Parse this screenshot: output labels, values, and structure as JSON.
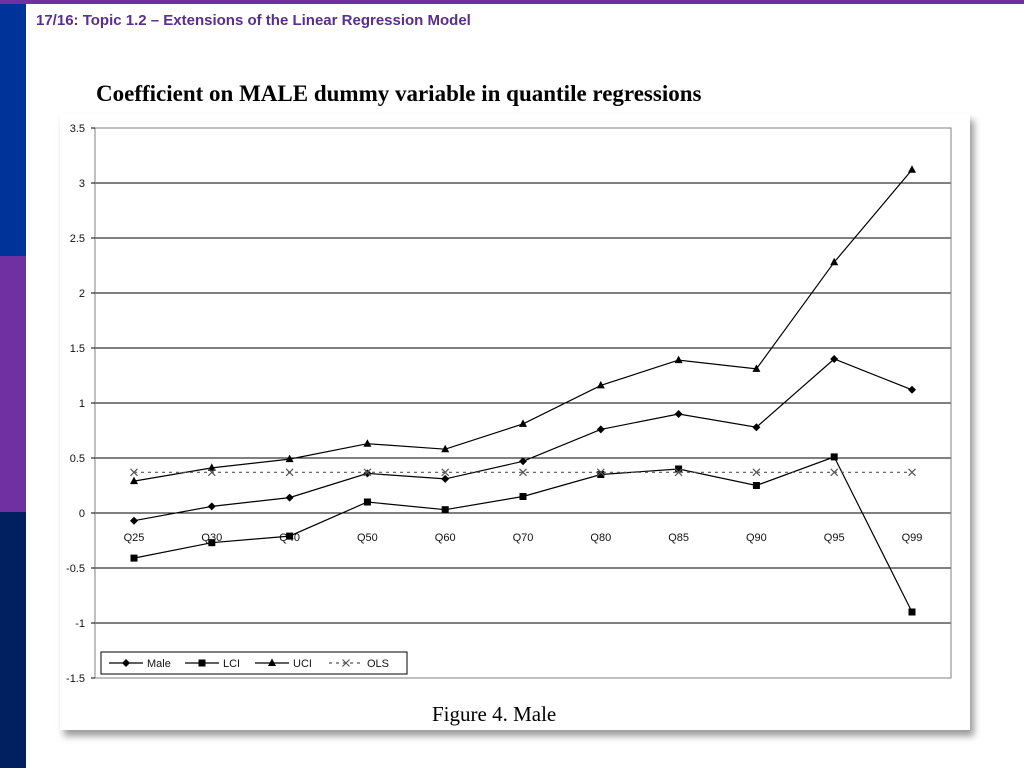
{
  "slide": {
    "header": "17/16: Topic 1.2 – Extensions of the Linear Regression Model",
    "heading": "Coefficient on MALE dummy variable in quantile regressions",
    "caption": "Figure 4.  Male"
  },
  "colors": {
    "header_text": "#5a2d91",
    "top_rule": "#7030a0",
    "band_top": "#003399",
    "band_middle": "#7030a0",
    "band_bottom": "#002060",
    "series_line": "#000000",
    "ols_line": "#555555"
  },
  "chart_data": {
    "type": "line",
    "title": "",
    "xlabel": "",
    "ylabel": "",
    "categories": [
      "Q25",
      "Q30",
      "Q40",
      "Q50",
      "Q60",
      "Q70",
      "Q80",
      "Q85",
      "Q90",
      "Q95",
      "Q99"
    ],
    "ylim": [
      -1.5,
      3.5
    ],
    "yticks": [
      "3.5",
      "3",
      "2.5",
      "2",
      "1.5",
      "1",
      "0.5",
      "0",
      "-0.5",
      "-1",
      "-1.5"
    ],
    "grid": "horizontal",
    "legend_position": "bottom-left",
    "series": [
      {
        "name": "Male",
        "marker": "diamond",
        "dash": "solid",
        "values": [
          -0.07,
          0.06,
          0.14,
          0.36,
          0.31,
          0.47,
          0.76,
          0.9,
          0.78,
          1.4,
          1.12
        ]
      },
      {
        "name": "LCI",
        "marker": "square",
        "dash": "solid",
        "values": [
          -0.41,
          -0.27,
          -0.21,
          0.1,
          0.03,
          0.15,
          0.35,
          0.4,
          0.25,
          0.51,
          -0.9
        ]
      },
      {
        "name": "UCI",
        "marker": "triangle",
        "dash": "solid",
        "values": [
          0.29,
          0.41,
          0.49,
          0.63,
          0.58,
          0.81,
          1.16,
          1.39,
          1.31,
          2.28,
          3.12
        ]
      },
      {
        "name": "OLS",
        "marker": "x",
        "dash": "dashed",
        "values": [
          0.37,
          0.37,
          0.37,
          0.37,
          0.37,
          0.37,
          0.37,
          0.37,
          0.37,
          0.37,
          0.37
        ]
      }
    ]
  }
}
